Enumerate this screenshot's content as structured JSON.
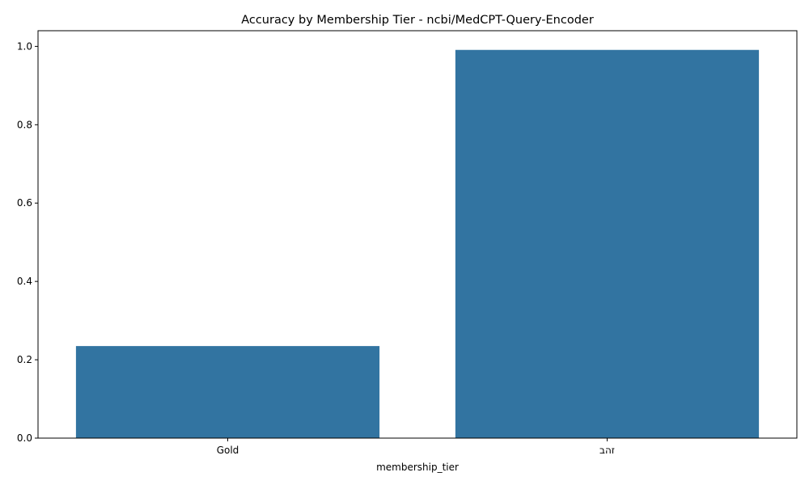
{
  "chart_data": {
    "type": "bar",
    "title": "Accuracy by Membership Tier - ncbi/MedCPT-Query-Encoder",
    "xlabel": "membership_tier",
    "ylabel": "",
    "categories": [
      "Gold",
      "זהב"
    ],
    "values": [
      0.235,
      0.991
    ],
    "ylim": [
      0,
      1.04
    ],
    "yticks": [
      "0.0",
      "0.2",
      "0.4",
      "0.6",
      "0.8",
      "1.0"
    ],
    "bar_color": "#3274a1",
    "grid": false,
    "legend": "none"
  }
}
